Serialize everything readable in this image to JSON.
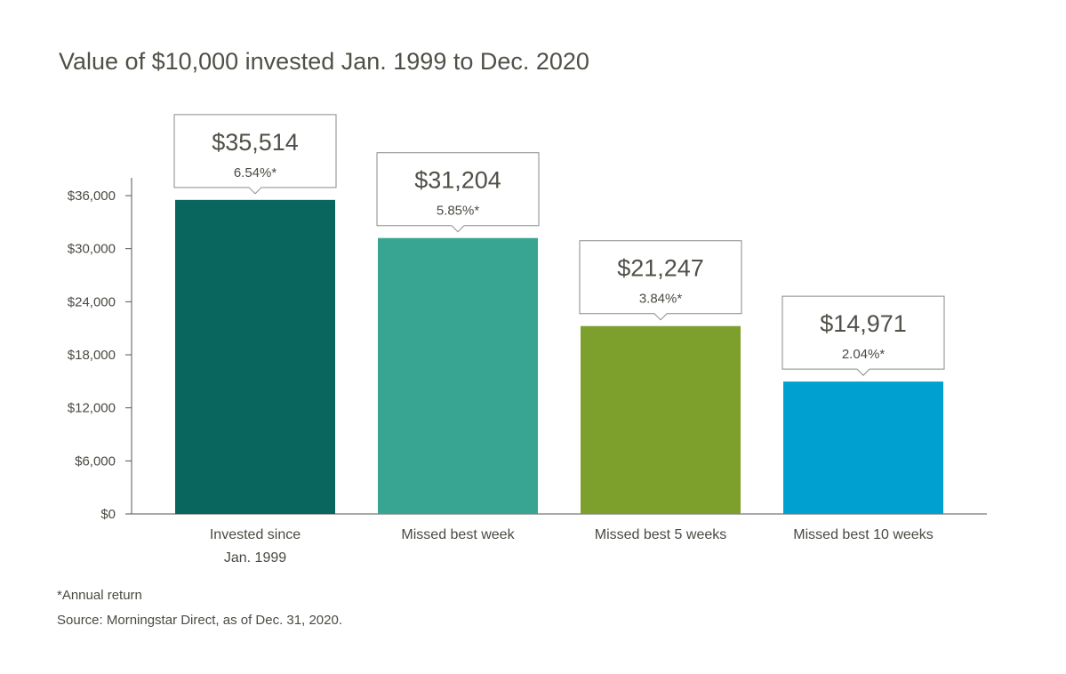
{
  "chart_data": {
    "type": "bar",
    "title": "Value of $10,000 invested Jan. 1999 to Dec. 2020",
    "xlabel": "",
    "ylabel": "",
    "ylim": [
      0,
      36000
    ],
    "yticks": [
      0,
      6000,
      12000,
      18000,
      24000,
      30000,
      36000
    ],
    "ytick_labels": [
      "$0",
      "$6,000",
      "$12,000",
      "$18,000",
      "$24,000",
      "$30,000",
      "$36,000"
    ],
    "categories": [
      [
        "Invested since",
        "Jan. 1999"
      ],
      [
        "Missed best week"
      ],
      [
        "Missed best 5 weeks"
      ],
      [
        "Missed best 10 weeks"
      ]
    ],
    "values": [
      35514,
      31204,
      21247,
      14971
    ],
    "value_labels": [
      "$35,514",
      "$31,204",
      "$21,247",
      "$14,971"
    ],
    "annual_returns": [
      "6.54%*",
      "5.85%*",
      "3.84%*",
      "2.04%*"
    ],
    "colors": [
      "#08665e",
      "#38a592",
      "#7d9f2b",
      "#00a0d1"
    ],
    "grid": false,
    "legend": "none"
  },
  "footnotes": {
    "annual_return_note": "*Annual return",
    "source": "Source: Morningstar Direct, as of Dec. 31, 2020."
  }
}
